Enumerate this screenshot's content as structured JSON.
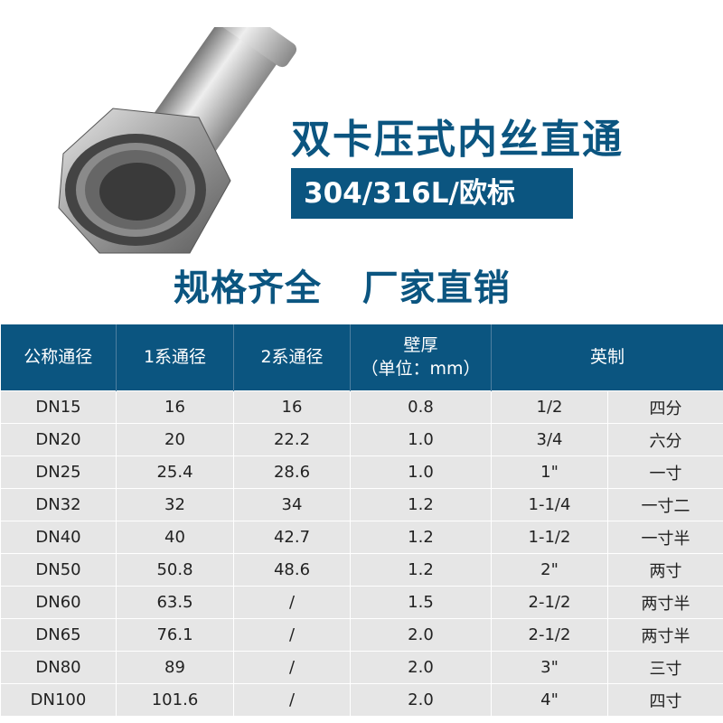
{
  "title": "双卡压式内丝直通",
  "badge": "304/316L/欧标",
  "slogan": "规格齐全   厂家直销",
  "table": {
    "headers": [
      "公称通径",
      "1系通径",
      "2系通径",
      "壁厚",
      "（单位：mm）",
      "英制"
    ],
    "rows": [
      [
        "DN15",
        "16",
        "16",
        "0.8",
        "1/2",
        "四分"
      ],
      [
        "DN20",
        "20",
        "22.2",
        "1.0",
        "3/4",
        "六分"
      ],
      [
        "DN25",
        "25.4",
        "28.6",
        "1.0",
        "1\"",
        "一寸"
      ],
      [
        "DN32",
        "32",
        "34",
        "1.2",
        "1-1/4",
        "一寸二"
      ],
      [
        "DN40",
        "40",
        "42.7",
        "1.2",
        "1-1/2",
        "一寸半"
      ],
      [
        "DN50",
        "50.8",
        "48.6",
        "1.2",
        "2\"",
        "两寸"
      ],
      [
        "DN60",
        "63.5",
        "/",
        "1.5",
        "2-1/2",
        "两寸半"
      ],
      [
        "DN65",
        "76.1",
        "/",
        "2.0",
        "2-1/2",
        "两寸半"
      ],
      [
        "DN80",
        "89",
        "/",
        "2.0",
        "3\"",
        "三寸"
      ],
      [
        "DN100",
        "101.6",
        "/",
        "2.0",
        "4\"",
        "四寸"
      ]
    ]
  },
  "colors": {
    "brand": "#0b5580",
    "row_bg": "#e6e6e6"
  }
}
